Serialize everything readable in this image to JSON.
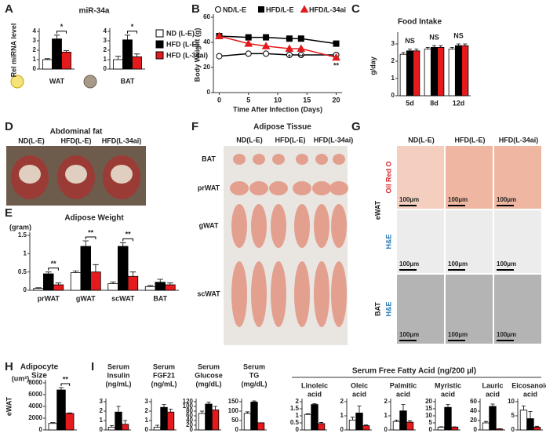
{
  "figure": {
    "letters": [
      "A",
      "B",
      "C",
      "D",
      "E",
      "F",
      "G",
      "H",
      "I"
    ],
    "D": {
      "title": "Abdominal fat",
      "columns": [
        "ND(L-E)",
        "HFD(L-E)",
        "HFD(L-34ai)"
      ]
    },
    "F": {
      "title": "Adipose Tissue",
      "columns": [
        "ND(L-E)",
        "HFD(L-E)",
        "HFD(L-34ai)"
      ],
      "rows": [
        "BAT",
        "prWAT",
        "gWAT",
        "scWAT"
      ]
    },
    "G": {
      "columns": [
        "ND(L-E)",
        "HFD(L-E)",
        "HFD(L-34ai)"
      ],
      "tissues": [
        "eWAT",
        "BAT"
      ],
      "stains": [
        "Oil Red O",
        "H&E",
        "H&E"
      ],
      "scale_bar": "100µm"
    },
    "ffa_header": "Serum Free Fatty Acid (ng/200 µl)"
  },
  "chart_data": [
    {
      "type": "bar",
      "title": [
        "miR-34a"
      ],
      "ylabel": "Rel miRNA level",
      "categories": [
        "WAT"
      ],
      "ylim": [
        0,
        4
      ],
      "yticks": [
        0,
        1,
        2,
        3,
        4
      ],
      "series": [
        {
          "color": "#ffffff",
          "values": [
            1
          ],
          "errors": [
            0.1
          ]
        },
        {
          "color": "#000000",
          "values": [
            3.2
          ],
          "errors": [
            0.4
          ]
        },
        {
          "color": "#e41a1c",
          "values": [
            1.8
          ],
          "errors": [
            0.15
          ]
        }
      ],
      "annotations": [
        "*"
      ],
      "bracket": true
    },
    {
      "type": "bar",
      "categories": [
        "BAT"
      ],
      "ylim": [
        0,
        4
      ],
      "yticks": [
        0,
        1,
        2,
        3,
        4
      ],
      "legend": "right",
      "series": [
        {
          "name": "ND (L-E)",
          "color": "#ffffff",
          "values": [
            1
          ],
          "errors": [
            0.35
          ]
        },
        {
          "name": "HFD (L-E)",
          "color": "#000000",
          "values": [
            3.1
          ],
          "errors": [
            0.5
          ]
        },
        {
          "name": "HFD (L-34ai)",
          "color": "#e41a1c",
          "values": [
            1.3
          ],
          "errors": [
            0.3
          ]
        }
      ],
      "annotations": [
        "*"
      ],
      "bracket": true
    },
    {
      "type": "line",
      "ylabel": "Body Weight (g)",
      "xlabel": "Time After Infection (Days)",
      "x": [
        0,
        5,
        8,
        12,
        14,
        20
      ],
      "xlim": [
        -1,
        21
      ],
      "xticks": [
        0,
        5,
        10,
        15,
        20
      ],
      "ylim": [
        0,
        60
      ],
      "yticks": [
        0,
        20,
        40,
        60
      ],
      "legend": "top",
      "series": [
        {
          "name": "ND/L-E",
          "color": "#ffffff",
          "edgecolor": "#000000",
          "marker": "circle",
          "values": [
            29,
            31,
            31,
            30,
            30,
            30
          ]
        },
        {
          "name": "HFD/L-E",
          "color": "#000000",
          "edgecolor": "#000000",
          "marker": "square",
          "values": [
            45,
            44,
            44,
            43,
            43,
            39
          ]
        },
        {
          "name": "HFD/L-34ai",
          "color": "#e41a1c",
          "edgecolor": "#e41a1c",
          "marker": "triangle",
          "values": [
            45,
            39,
            37,
            35,
            35,
            28
          ]
        }
      ],
      "annotations": [
        null,
        null,
        null,
        "*",
        "**",
        "**"
      ]
    },
    {
      "type": "bar",
      "title": [
        "Food Intake"
      ],
      "ylabel": "g/day",
      "categories": [
        "5d",
        "8d",
        "12d"
      ],
      "ylim": [
        0,
        3.5
      ],
      "yticks": [
        0,
        1,
        2,
        3
      ],
      "series": [
        {
          "color": "#ffffff",
          "values": [
            2.4,
            2.7,
            2.7
          ],
          "errors": [
            0.1,
            0.1,
            0.1
          ]
        },
        {
          "color": "#000000",
          "values": [
            2.6,
            2.8,
            2.9
          ],
          "errors": [
            0.1,
            0.1,
            0.1
          ]
        },
        {
          "color": "#e41a1c",
          "values": [
            2.6,
            2.8,
            2.9
          ],
          "errors": [
            0.1,
            0.1,
            0.1
          ]
        }
      ],
      "annotations": [
        "NS",
        "NS",
        "NS"
      ],
      "bracket": false
    },
    {
      "type": "bar",
      "title": [
        "Adipose Weight"
      ],
      "ylabel": "(gram)",
      "categories": [
        "prWAT",
        "gWAT",
        "scWAT",
        "BAT"
      ],
      "ylim": [
        0,
        1.5
      ],
      "yticks": [
        0,
        0.5,
        1,
        1.5
      ],
      "series": [
        {
          "color": "#ffffff",
          "values": [
            0.05,
            0.48,
            0.18,
            0.1
          ],
          "errors": [
            0.02,
            0.05,
            0.05,
            0.03
          ]
        },
        {
          "color": "#000000",
          "values": [
            0.45,
            1.2,
            1.2,
            0.22
          ],
          "errors": [
            0.05,
            0.15,
            0.1,
            0.08
          ]
        },
        {
          "color": "#e41a1c",
          "values": [
            0.15,
            0.5,
            0.38,
            0.15
          ],
          "errors": [
            0.05,
            0.2,
            0.12,
            0.05
          ]
        }
      ],
      "annotations": [
        "**",
        "**",
        "**",
        null
      ],
      "bracket": true
    },
    {
      "type": "bar",
      "title": [
        "Adipocyte",
        "Size"
      ],
      "ylabel": "(um²)",
      "side_label": "eWAT",
      "categories": [
        null
      ],
      "ylim": [
        0,
        8000
      ],
      "yticks": [
        0,
        2000,
        4000,
        6000,
        8000
      ],
      "series": [
        {
          "color": "#ffffff",
          "values": [
            1100
          ],
          "errors": [
            150
          ]
        },
        {
          "color": "#000000",
          "values": [
            6800
          ],
          "errors": [
            400
          ]
        },
        {
          "color": "#e41a1c",
          "values": [
            2800
          ],
          "errors": [
            100
          ]
        }
      ],
      "annotations": [
        "**"
      ],
      "bracket": true
    },
    {
      "type": "bar",
      "title": [
        "Serum",
        "Insulin",
        "(ng/mL)"
      ],
      "categories": [
        null
      ],
      "ylim": [
        0,
        3
      ],
      "yticks": [
        0,
        1,
        2,
        3
      ],
      "series": [
        {
          "color": "#ffffff",
          "values": [
            0.3
          ],
          "errors": [
            0.15
          ]
        },
        {
          "color": "#000000",
          "values": [
            1.9
          ],
          "errors": [
            0.6
          ]
        },
        {
          "color": "#e41a1c",
          "values": [
            0.6
          ],
          "errors": [
            0.4
          ]
        }
      ]
    },
    {
      "type": "bar",
      "title": [
        "Serum",
        "FGF21",
        "(ng/mL)"
      ],
      "categories": [
        null
      ],
      "ylim": [
        0,
        3
      ],
      "yticks": [
        0,
        1,
        2,
        3
      ],
      "series": [
        {
          "color": "#ffffff",
          "values": [
            0.3
          ],
          "errors": [
            0.2
          ]
        },
        {
          "color": "#000000",
          "values": [
            2.4
          ],
          "errors": [
            0.3
          ]
        },
        {
          "color": "#e41a1c",
          "values": [
            1.9
          ],
          "errors": [
            0.3
          ]
        }
      ]
    },
    {
      "type": "bar",
      "title": [
        "Serum",
        "Glucose",
        "(mg/dL)"
      ],
      "categories": [
        null
      ],
      "ylim": [
        0,
        120
      ],
      "yticks": [
        0,
        20,
        40,
        60,
        80,
        100,
        120
      ],
      "series": [
        {
          "color": "#ffffff",
          "values": [
            70
          ],
          "errors": [
            10
          ]
        },
        {
          "color": "#000000",
          "values": [
            110
          ],
          "errors": [
            8
          ]
        },
        {
          "color": "#e41a1c",
          "values": [
            85
          ],
          "errors": [
            15
          ]
        }
      ]
    },
    {
      "type": "bar",
      "title": [
        "Serum",
        "TG",
        "(mg/dL)"
      ],
      "categories": [
        null
      ],
      "ylim": [
        0,
        150
      ],
      "yticks": [
        0,
        50,
        100,
        150
      ],
      "series": [
        {
          "color": "#ffffff",
          "values": [
            88
          ],
          "errors": [
            8
          ]
        },
        {
          "color": "#000000",
          "values": [
            148
          ],
          "errors": [
            6
          ]
        },
        {
          "color": "#e41a1c",
          "values": [
            38
          ],
          "errors": [
            0
          ]
        }
      ]
    },
    {
      "type": "bar",
      "title": [
        "Linoleic",
        "acid"
      ],
      "categories": [
        null
      ],
      "ylim": [
        0,
        2
      ],
      "yticks": [
        0,
        0.5,
        1,
        1.5,
        2
      ],
      "series": [
        {
          "color": "#ffffff",
          "values": [
            1.1
          ],
          "errors": [
            0.05
          ]
        },
        {
          "color": "#000000",
          "values": [
            1.8
          ],
          "errors": [
            0.05
          ]
        },
        {
          "color": "#e41a1c",
          "values": [
            0.45
          ],
          "errors": [
            0.08
          ]
        }
      ]
    },
    {
      "type": "bar",
      "title": [
        "Oleic",
        "acid"
      ],
      "categories": [
        null
      ],
      "ylim": [
        0,
        2
      ],
      "yticks": [
        0,
        1,
        2
      ],
      "series": [
        {
          "color": "#ffffff",
          "values": [
            0.7
          ],
          "errors": [
            0.2
          ]
        },
        {
          "color": "#000000",
          "values": [
            1.2
          ],
          "errors": [
            0.5
          ]
        },
        {
          "color": "#e41a1c",
          "values": [
            0.3
          ],
          "errors": [
            0.05
          ]
        }
      ]
    },
    {
      "type": "bar",
      "title": [
        "Palmitic",
        "acid"
      ],
      "categories": [
        null
      ],
      "ylim": [
        0,
        2
      ],
      "yticks": [
        0,
        1,
        2
      ],
      "series": [
        {
          "color": "#ffffff",
          "values": [
            0.6
          ],
          "errors": [
            0.1
          ]
        },
        {
          "color": "#000000",
          "values": [
            1.35
          ],
          "errors": [
            0.45
          ]
        },
        {
          "color": "#e41a1c",
          "values": [
            0.55
          ],
          "errors": [
            0.1
          ]
        }
      ]
    },
    {
      "type": "bar",
      "title": [
        "Myristic",
        "acid"
      ],
      "categories": [
        null
      ],
      "ylim": [
        0,
        20
      ],
      "yticks": [
        0,
        5,
        10,
        15,
        20
      ],
      "series": [
        {
          "color": "#ffffff",
          "values": [
            2
          ],
          "errors": [
            0.3
          ]
        },
        {
          "color": "#000000",
          "values": [
            16
          ],
          "errors": [
            2
          ]
        },
        {
          "color": "#e41a1c",
          "values": [
            2
          ],
          "errors": [
            0.2
          ]
        }
      ]
    },
    {
      "type": "bar",
      "title": [
        "Lauric",
        "acid"
      ],
      "categories": [
        null
      ],
      "ylim": [
        0,
        60
      ],
      "yticks": [
        0,
        20,
        40,
        60
      ],
      "series": [
        {
          "color": "#ffffff",
          "values": [
            15
          ],
          "errors": [
            3
          ]
        },
        {
          "color": "#000000",
          "values": [
            50
          ],
          "errors": [
            5
          ]
        },
        {
          "color": "#e41a1c",
          "values": [
            2
          ],
          "errors": [
            0.5
          ]
        }
      ]
    },
    {
      "type": "bar",
      "title": [
        "Eicosanoic",
        "acid"
      ],
      "categories": [
        null
      ],
      "ylim": [
        0,
        10
      ],
      "yticks": [
        0,
        5,
        10
      ],
      "series": [
        {
          "color": "#ffffff",
          "values": [
            7
          ],
          "errors": [
            1.5
          ]
        },
        {
          "color": "#000000",
          "values": [
            4
          ],
          "errors": [
            2.5
          ]
        },
        {
          "color": "#e41a1c",
          "values": [
            1
          ],
          "errors": [
            0.3
          ]
        }
      ]
    }
  ]
}
